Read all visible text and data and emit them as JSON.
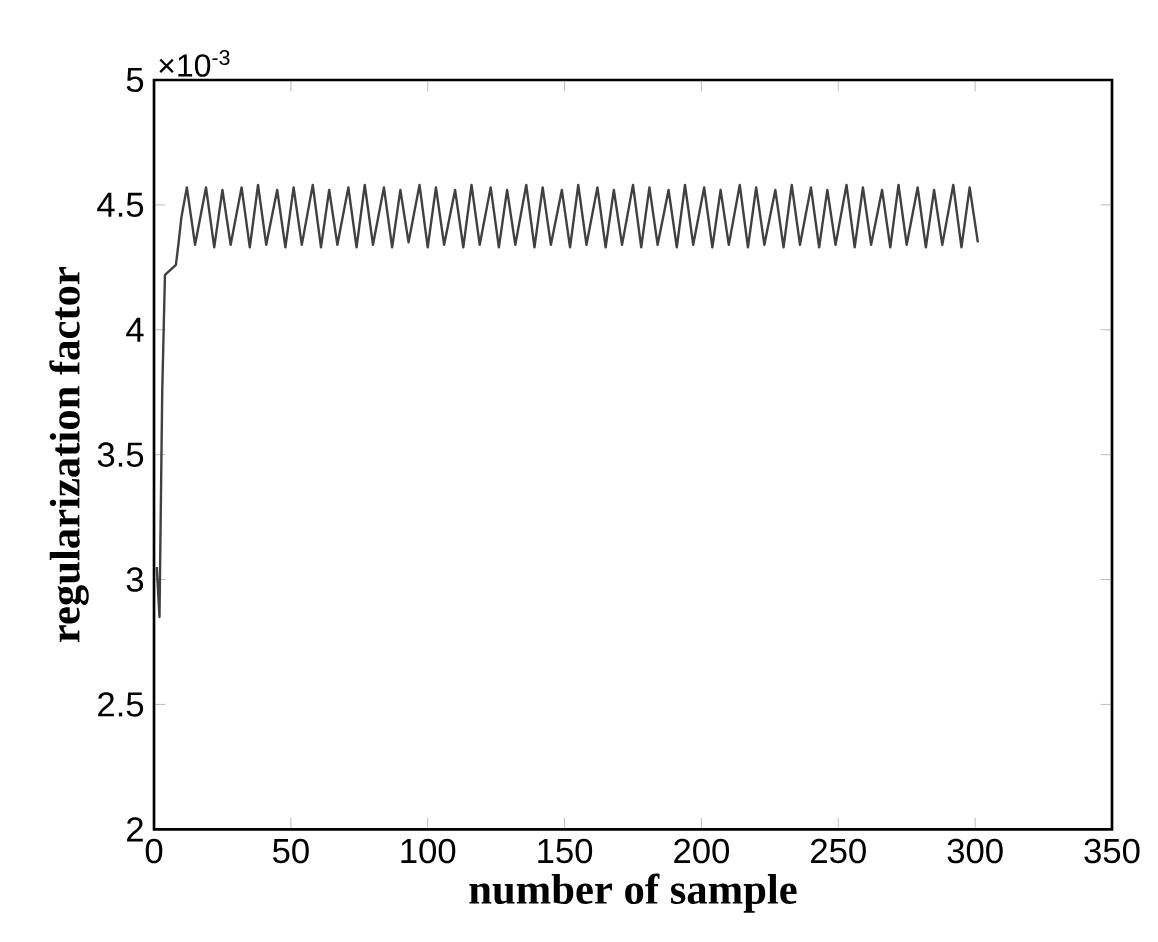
{
  "chart_data": {
    "type": "line",
    "xlabel": "number of sample",
    "ylabel": "regularization factor",
    "annotations": [
      "×10$^{-3}$"
    ],
    "xlim": [
      0,
      350
    ],
    "ylim": [
      2,
      5
    ],
    "xticks": [
      0,
      50,
      100,
      150,
      200,
      250,
      300,
      350
    ],
    "yticks": [
      2,
      2.5,
      3,
      3.5,
      4,
      4.5,
      5
    ],
    "grid": false,
    "marker": "none",
    "line_style": "solid",
    "series": [
      {
        "color": "#404040",
        "x": [
          1,
          2,
          3,
          4,
          5,
          8,
          9,
          10,
          12,
          15,
          19,
          22,
          25,
          28,
          32,
          35,
          38,
          41,
          45,
          48,
          51,
          54,
          58,
          61,
          64,
          67,
          71,
          74,
          77,
          80,
          84,
          87,
          90,
          93,
          97,
          100,
          103,
          106,
          110,
          113,
          116,
          119,
          123,
          126,
          129,
          132,
          136,
          139,
          142,
          145,
          149,
          152,
          155,
          158,
          162,
          165,
          168,
          171,
          175,
          178,
          181,
          184,
          188,
          191,
          194,
          197,
          201,
          204,
          207,
          210,
          214,
          217,
          220,
          223,
          227,
          230,
          233,
          236,
          240,
          243,
          246,
          249,
          253,
          256,
          259,
          262,
          266,
          269,
          272,
          275,
          279,
          282,
          285,
          288,
          292,
          295,
          298,
          301
        ],
        "values": [
          3.05,
          2.85,
          3.75,
          4.22,
          4.23,
          4.26,
          4.35,
          4.45,
          4.57,
          4.34,
          4.57,
          4.33,
          4.56,
          4.34,
          4.57,
          4.33,
          4.58,
          4.34,
          4.56,
          4.33,
          4.57,
          4.34,
          4.58,
          4.33,
          4.56,
          4.34,
          4.57,
          4.33,
          4.58,
          4.34,
          4.57,
          4.33,
          4.56,
          4.35,
          4.58,
          4.33,
          4.57,
          4.34,
          4.56,
          4.33,
          4.58,
          4.34,
          4.57,
          4.33,
          4.56,
          4.34,
          4.58,
          4.33,
          4.57,
          4.34,
          4.56,
          4.33,
          4.58,
          4.34,
          4.57,
          4.33,
          4.56,
          4.34,
          4.58,
          4.33,
          4.57,
          4.34,
          4.56,
          4.33,
          4.58,
          4.34,
          4.57,
          4.33,
          4.56,
          4.34,
          4.58,
          4.33,
          4.57,
          4.34,
          4.56,
          4.33,
          4.58,
          4.34,
          4.57,
          4.33,
          4.56,
          4.34,
          4.58,
          4.33,
          4.57,
          4.34,
          4.56,
          4.33,
          4.58,
          4.34,
          4.57,
          4.33,
          4.56,
          4.34,
          4.58,
          4.33,
          4.57,
          4.35
        ]
      }
    ]
  }
}
